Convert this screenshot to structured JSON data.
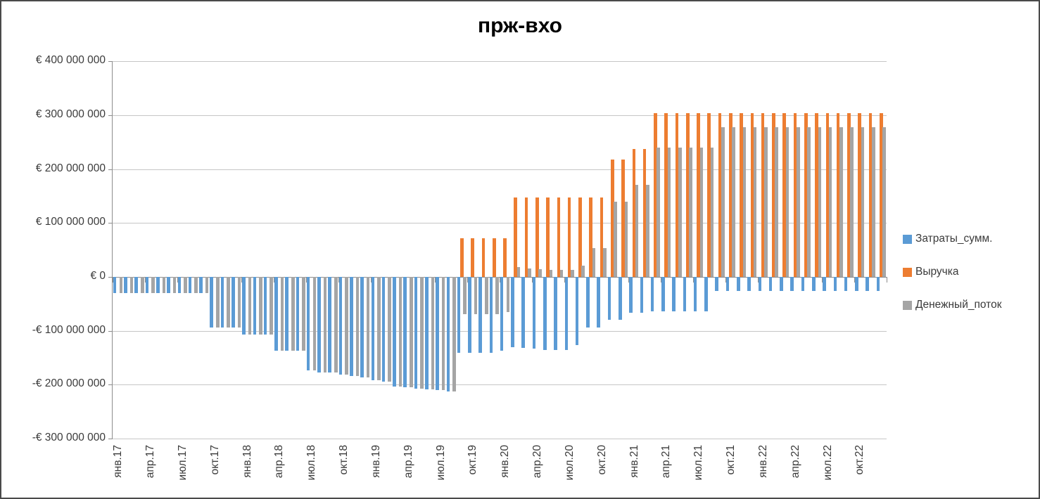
{
  "title": "прж-вхо",
  "y_axis": {
    "labels": [
      "€ 400 000 000",
      "€ 300 000 000",
      "€ 200 000 000",
      "€ 100 000 000",
      "€ 0",
      "-€ 100 000 000",
      "-€ 200 000 000",
      "-€ 300 000 000"
    ],
    "values_millions": [
      400,
      300,
      200,
      100,
      0,
      -100,
      -200,
      -300
    ]
  },
  "legend": {
    "items": [
      {
        "label": "Затраты_сумм.",
        "color": "#5B9BD5"
      },
      {
        "label": "Выручка",
        "color": "#ED7D31"
      },
      {
        "label": "Денежный_поток",
        "color": "#A5A5A5"
      }
    ]
  },
  "chart_data": {
    "type": "bar",
    "title": "прж-вхо",
    "unit": "EUR, millions",
    "grid": true,
    "legend_position": "right",
    "ylim_millions": [
      -300,
      400
    ],
    "x_tick_interval": 3,
    "categories": [
      "янв.17",
      "фев.17",
      "мар.17",
      "апр.17",
      "май.17",
      "июн.17",
      "июл.17",
      "авг.17",
      "сен.17",
      "окт.17",
      "ноя.17",
      "дек.17",
      "янв.18",
      "фев.18",
      "мар.18",
      "апр.18",
      "май.18",
      "июн.18",
      "июл.18",
      "авг.18",
      "сен.18",
      "окт.18",
      "ноя.18",
      "дек.18",
      "янв.19",
      "фев.19",
      "мар.19",
      "апр.19",
      "май.19",
      "июн.19",
      "июл.19",
      "авг.19",
      "сен.19",
      "окт.19",
      "ноя.19",
      "дек.19",
      "янв.20",
      "фев.20",
      "мар.20",
      "апр.20",
      "май.20",
      "июн.20",
      "июл.20",
      "авг.20",
      "сен.20",
      "окт.20",
      "ноя.20",
      "дек.20",
      "янв.21",
      "фев.21",
      "мар.21",
      "апр.21",
      "май.21",
      "июн.21",
      "июл.21",
      "авг.21",
      "сен.21",
      "окт.21",
      "ноя.21",
      "дек.21",
      "янв.22",
      "фев.22",
      "мар.22",
      "апр.22",
      "май.22",
      "июн.22",
      "июл.22",
      "авг.22",
      "сен.22",
      "окт.22",
      "ноя.22",
      "дек.22"
    ],
    "series": [
      {
        "name": "Затраты_сумм.",
        "color": "#5B9BD5",
        "values": [
          -30,
          -30,
          -30,
          -30,
          -30,
          -30,
          -30,
          -30,
          -30,
          -94,
          -94,
          -94,
          -107,
          -107,
          -107,
          -137,
          -137,
          -137,
          -174,
          -177,
          -178,
          -181,
          -184,
          -187,
          -192,
          -194,
          -203,
          -205,
          -207,
          -209,
          -210,
          -212,
          -141,
          -141,
          -141,
          -141,
          -137,
          -130,
          -132,
          -133,
          -135,
          -135,
          -135,
          -127,
          -94,
          -94,
          -79,
          -79,
          -67,
          -67,
          -64,
          -64,
          -64,
          -64,
          -64,
          -64,
          -26,
          -26,
          -26,
          -26,
          -26,
          -26,
          -26,
          -26,
          -26,
          -26,
          -26,
          -26,
          -26,
          -26,
          -26,
          -26
        ]
      },
      {
        "name": "Выручка",
        "color": "#ED7D31",
        "values": [
          0,
          0,
          0,
          0,
          0,
          0,
          0,
          0,
          0,
          0,
          0,
          0,
          0,
          0,
          0,
          0,
          0,
          0,
          0,
          0,
          0,
          0,
          0,
          0,
          0,
          0,
          0,
          0,
          0,
          0,
          0,
          0,
          72,
          72,
          72,
          72,
          72,
          148,
          148,
          148,
          148,
          148,
          148,
          148,
          148,
          148,
          218,
          218,
          238,
          238,
          304,
          304,
          304,
          304,
          304,
          304,
          304,
          304,
          304,
          304,
          304,
          304,
          304,
          304,
          304,
          304,
          304,
          304,
          304,
          304,
          304,
          304
        ]
      },
      {
        "name": "Денежный_поток",
        "color": "#A5A5A5",
        "values": [
          -30,
          -30,
          -30,
          -30,
          -30,
          -30,
          -30,
          -30,
          -30,
          -94,
          -94,
          -94,
          -107,
          -107,
          -107,
          -137,
          -137,
          -137,
          -174,
          -177,
          -178,
          -181,
          -184,
          -187,
          -192,
          -194,
          -203,
          -205,
          -207,
          -209,
          -210,
          -212,
          -69,
          -69,
          -69,
          -69,
          -65,
          18,
          16,
          15,
          13,
          13,
          13,
          21,
          54,
          54,
          139,
          139,
          171,
          171,
          240,
          240,
          240,
          240,
          240,
          240,
          278,
          278,
          278,
          278,
          278,
          278,
          278,
          278,
          278,
          278,
          278,
          278,
          278,
          278,
          278,
          278
        ]
      }
    ]
  }
}
